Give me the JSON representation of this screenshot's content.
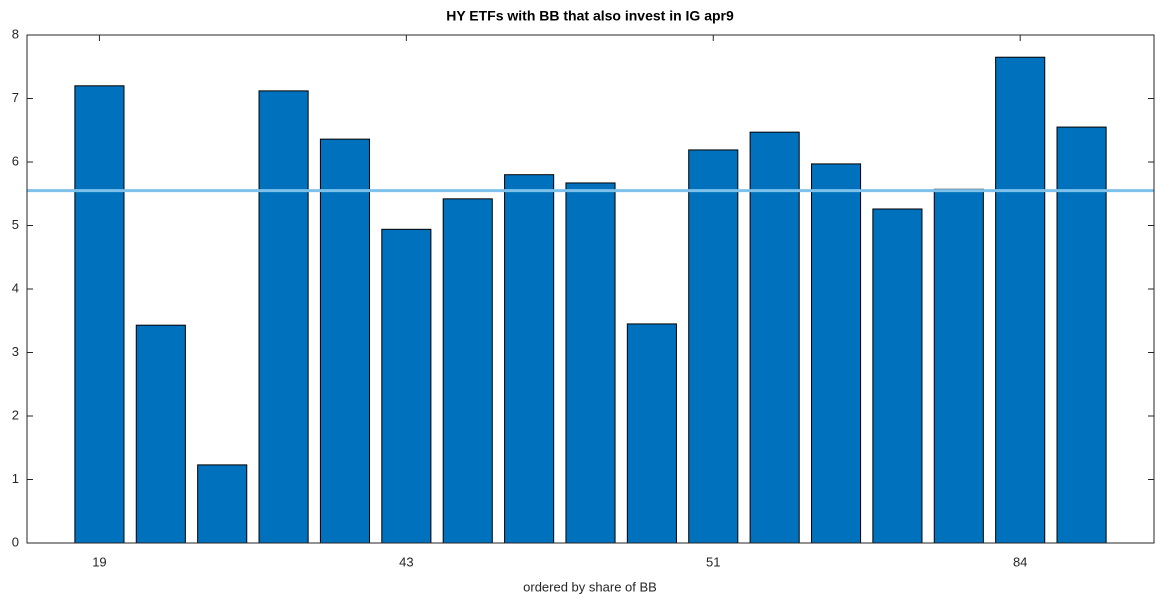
{
  "chart_data": {
    "type": "bar",
    "title": "HY ETFs with BB that also invest in IG apr9",
    "x_label": "ordered by share of BB",
    "categories": [
      "19",
      null,
      null,
      null,
      null,
      "43",
      null,
      null,
      null,
      null,
      "51",
      null,
      null,
      null,
      null,
      "84",
      null
    ],
    "values": [
      7.2,
      3.43,
      1.23,
      7.12,
      6.36,
      4.94,
      5.42,
      5.8,
      5.67,
      3.45,
      6.19,
      6.47,
      5.97,
      5.26,
      5.57,
      7.65,
      6.55
    ],
    "color": "#0072bd",
    "reference_line": {
      "value": 5.55,
      "color": "#7ec1ea"
    },
    "ylim": [
      0,
      8
    ],
    "yticks": [
      0,
      1,
      2,
      3,
      4,
      5,
      6,
      7,
      8
    ],
    "grid": false
  }
}
